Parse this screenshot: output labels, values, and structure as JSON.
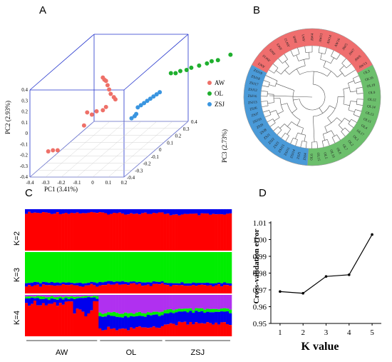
{
  "panels": {
    "a": "A",
    "b": "B",
    "c": "C",
    "d": "D"
  },
  "colors": {
    "aw": "#ee7068",
    "ol": "#1faf2e",
    "zsj": "#3a95e0",
    "red": "#ff0000",
    "green": "#00ee00",
    "blue": "#0000ee",
    "purple": "#b030f0",
    "box": "#2233cc",
    "red_arc": "#ef6e6e",
    "green_arc": "#6cbf6c",
    "blue_arc": "#4a9ad8"
  },
  "chart_data": [
    {
      "type": "scatter",
      "title": "",
      "xlabel": "PC1 (3.41%)",
      "ylabel": "PC2 (2.93%)",
      "zlabel": "PC3 (2.73%)",
      "x_ticks": [
        "-0.4",
        "-0.3",
        "-0.2",
        "-0.1",
        "0",
        "0.1",
        "0.2"
      ],
      "y_ticks": [
        "-0.4",
        "-0.3",
        "-0.2",
        "-0.1",
        "0",
        "0.1",
        "0.2",
        "0.3",
        "0.4"
      ],
      "z_ticks": [
        "-0.4",
        "-0.3",
        "-0.2",
        "-0.1",
        "0",
        "0.1",
        "0.2",
        "0.3",
        "0.4"
      ],
      "legend": [
        "AW",
        "OL",
        "ZSJ"
      ],
      "legend_position": "right",
      "series": [
        {
          "name": "AW",
          "points": [
            [
              -0.05,
              0.37,
              0.05
            ],
            [
              -0.04,
              0.35,
              0.05
            ],
            [
              -0.03,
              0.34,
              0.05
            ],
            [
              -0.02,
              0.3,
              0.05
            ],
            [
              -0.01,
              0.26,
              0.05
            ],
            [
              0.0,
              0.22,
              0.05
            ],
            [
              0.02,
              0.19,
              0.05
            ],
            [
              0.03,
              0.17,
              0.05
            ],
            [
              -0.15,
              0.05,
              0.05
            ],
            [
              -0.12,
              0.03,
              0.05
            ],
            [
              -0.09,
              0.06,
              0.05
            ],
            [
              -0.05,
              0.07,
              0.05
            ],
            [
              -0.03,
              0.1,
              0.05
            ],
            [
              -0.17,
              -0.07,
              0.05
            ],
            [
              -0.3,
              -0.25,
              -0.1
            ],
            [
              -0.33,
              -0.25,
              -0.1
            ],
            [
              -0.36,
              -0.26,
              -0.1
            ]
          ]
        },
        {
          "name": "OL",
          "points": [
            [
              0.32,
              0.33,
              0.3
            ],
            [
              0.35,
              0.33,
              0.3
            ],
            [
              0.38,
              0.35,
              0.3
            ],
            [
              0.42,
              0.36,
              0.3
            ],
            [
              0.45,
              0.38,
              0.3
            ],
            [
              0.5,
              0.4,
              0.3
            ],
            [
              0.55,
              0.42,
              0.3
            ],
            [
              0.58,
              0.44,
              0.3
            ],
            [
              0.62,
              0.45,
              0.3
            ],
            [
              0.7,
              0.5,
              0.3
            ]
          ]
        },
        {
          "name": "ZSJ",
          "points": [
            [
              0.2,
              0.12,
              0.1
            ],
            [
              0.22,
              0.14,
              0.1
            ],
            [
              0.24,
              0.16,
              0.1
            ],
            [
              0.26,
              0.18,
              0.1
            ],
            [
              0.28,
              0.2,
              0.1
            ],
            [
              0.3,
              0.22,
              0.1
            ],
            [
              0.18,
              0.1,
              0.1
            ],
            [
              0.16,
              0.08,
              0.1
            ],
            [
              0.14,
              0.0,
              0.1
            ],
            [
              0.15,
              0.02,
              0.1
            ],
            [
              0.12,
              -0.02,
              0.1
            ]
          ]
        }
      ]
    },
    {
      "type": "dendrogram",
      "title": "",
      "groups": [
        {
          "name": "AW",
          "color": "#ee7068",
          "leaves": [
            "AW2",
            "AW10",
            "AW9",
            "AW3",
            "AW12",
            "AW8",
            "AW1",
            "AW4",
            "AW11",
            "AW14",
            "AW16",
            "AW5",
            "AW7",
            "AW6",
            "AW13"
          ]
        },
        {
          "name": "OL",
          "color": "#1faf2e",
          "leaves": [
            "OL3",
            "OL16",
            "OL19",
            "OL9",
            "OL12",
            "OL14",
            "OL13",
            "OL11",
            "OL4",
            "OL17",
            "OL1",
            "OL2",
            "OL7",
            "OL8",
            "OL10",
            "OL5",
            "OL15",
            "OL6"
          ]
        },
        {
          "name": "ZSJ",
          "color": "#3a95e0",
          "leaves": [
            "ZSJ4",
            "ZSJ5",
            "ZSJ14",
            "ZSJ11",
            "ZSJ15",
            "ZSJ3",
            "ZSJ2",
            "ZSJ1",
            "ZSJ8",
            "ZSJ9",
            "ZSJ10",
            "ZSJ7",
            "ZSJ6",
            "ZSJ13",
            "ZSJ16",
            "ZSJ12",
            "ZSJ17",
            "ZSJ18",
            "ZSJ19"
          ]
        }
      ]
    },
    {
      "type": "bar",
      "subtype": "stacked-admixture",
      "rows": [
        "K=2",
        "K=3",
        "K=4"
      ],
      "groups": [
        {
          "name": "AW",
          "count": 26
        },
        {
          "name": "OL",
          "count": 23
        },
        {
          "name": "ZSJ",
          "count": 24
        }
      ]
    },
    {
      "type": "line",
      "title": "",
      "xlabel": "K value",
      "ylabel": "Cross-validation error",
      "x": [
        1,
        2,
        3,
        4,
        5
      ],
      "y": [
        0.969,
        0.968,
        0.978,
        0.979,
        1.003
      ],
      "xlim": [
        0.6,
        5.4
      ],
      "ylim": [
        0.95,
        1.01
      ],
      "y_ticks": [
        "0.95",
        "0.96",
        "0.97",
        "0.98",
        "0.99",
        "1.00",
        "1.01"
      ],
      "x_ticks": [
        "1",
        "2",
        "3",
        "4",
        "5"
      ],
      "grid": false
    }
  ]
}
